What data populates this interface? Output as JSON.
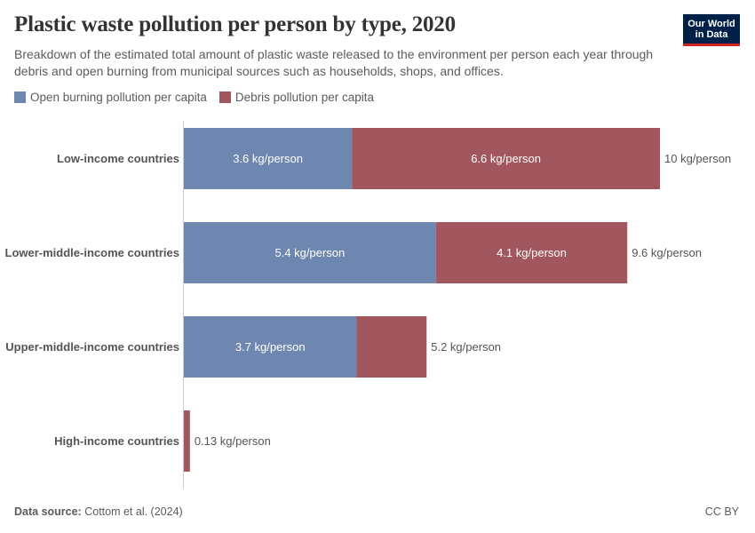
{
  "header": {
    "title": "Plastic waste pollution per person by type, 2020",
    "subtitle": "Breakdown of the estimated total amount of plastic waste released to the environment per person each year through debris and open burning from municipal sources such as households, shops, and offices."
  },
  "logo": {
    "line1": "Our World",
    "line2": "in Data"
  },
  "legend": [
    {
      "label": "Open burning pollution per capita",
      "color": "#6d87b1"
    },
    {
      "label": "Debris pollution per capita",
      "color": "#a2575f"
    }
  ],
  "chart_data": {
    "type": "bar",
    "orientation": "horizontal",
    "stacked": true,
    "categories": [
      "Low-income countries",
      "Lower-middle-income countries",
      "Upper-middle-income countries",
      "High-income countries"
    ],
    "series": [
      {
        "name": "Open burning pollution per capita",
        "values": [
          3.6,
          5.4,
          3.7,
          0
        ],
        "labels": [
          "3.6 kg/person",
          "5.4 kg/person",
          "3.7 kg/person",
          ""
        ],
        "color": "#6d87b1"
      },
      {
        "name": "Debris pollution per capita",
        "values": [
          6.6,
          4.1,
          1.5,
          0.13
        ],
        "labels": [
          "6.6 kg/person",
          "4.1 kg/person",
          "",
          ""
        ],
        "color": "#a2575f"
      }
    ],
    "totals": [
      "10 kg/person",
      "9.6 kg/person",
      "5.2 kg/person",
      "0.13 kg/person"
    ],
    "xlim": [
      0,
      10.2
    ],
    "grid": false,
    "legend_position": "top-left"
  },
  "footer": {
    "source_label": "Data source:",
    "source_value": "Cottom et al. (2024)",
    "license": "CC BY"
  }
}
